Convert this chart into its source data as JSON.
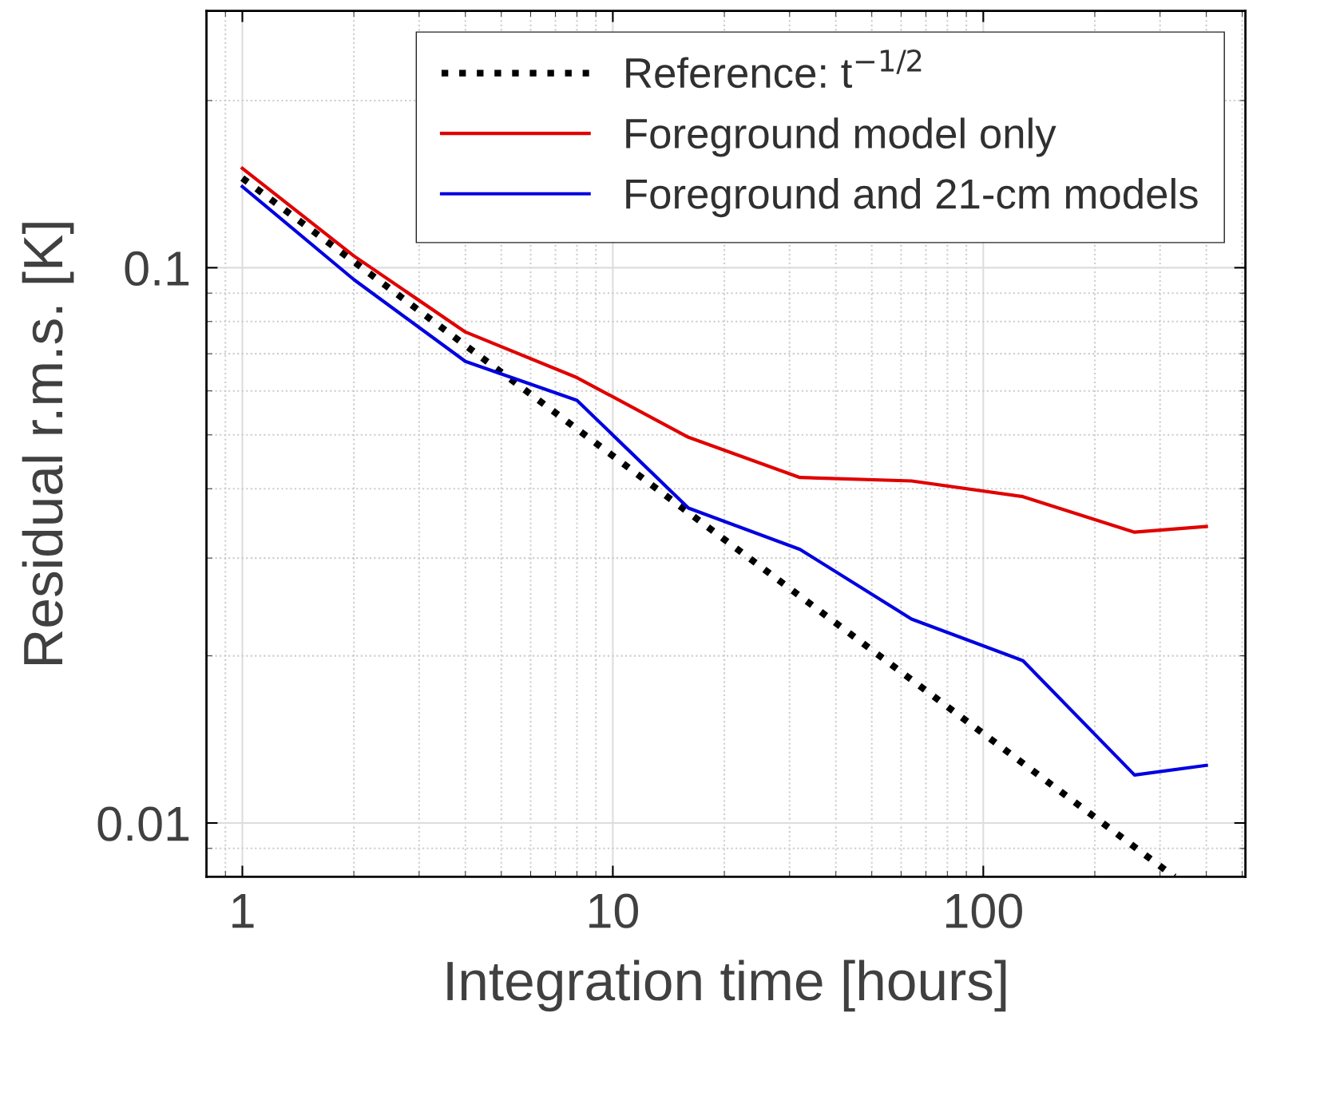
{
  "chart_data": {
    "type": "line",
    "xlabel": "Integration time [hours]",
    "ylabel": "Residual r.m.s. [K]",
    "log": "xy",
    "grid": true,
    "legend": "top right",
    "line_style": "solid",
    "marker": "none",
    "xlim": [
      0.8,
      510
    ],
    "ylim": [
      0.008,
      0.29
    ],
    "xticks": [
      1,
      10,
      100
    ],
    "yticks": [
      0.01,
      0.1
    ],
    "series": [
      {
        "name": "Reference: t$^{−1/2}$",
        "color": "#000000",
        "line_style": "dotted",
        "x": [
          1,
          328
        ],
        "values": [
          0.145,
          0.008
        ]
      },
      {
        "name": "Foreground model only",
        "color": "#e00000",
        "x": [
          1,
          2,
          4,
          8,
          16,
          32,
          64,
          128,
          256,
          400
        ],
        "values": [
          0.151,
          0.105,
          0.0766,
          0.0634,
          0.0495,
          0.0419,
          0.0413,
          0.0387,
          0.0334,
          0.0342
        ]
      },
      {
        "name": "Foreground and 21-cm models",
        "color": "#0000e0",
        "x": [
          1,
          2,
          4,
          8,
          16,
          32,
          64,
          128,
          256,
          400
        ],
        "values": [
          0.14,
          0.0952,
          0.0678,
          0.0577,
          0.0369,
          0.0311,
          0.0233,
          0.0196,
          0.0122,
          0.0127
        ]
      }
    ]
  }
}
